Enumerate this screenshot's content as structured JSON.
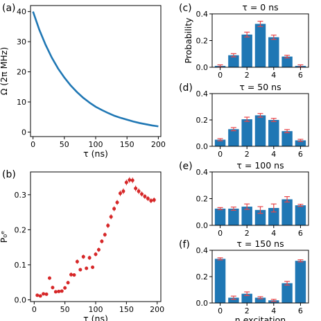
{
  "colors": {
    "line": "#1f77b4",
    "bar": "#1f77b4",
    "marker": "#d62728",
    "errbar": "#e8474a",
    "axis": "#000000"
  },
  "chart_data": [
    {
      "id": "a",
      "panel_label": "(a)",
      "type": "line",
      "xlabel": "τ (ns)",
      "ylabel": "Ω (2π MHz)",
      "xlim": [
        -4,
        204
      ],
      "ylim": [
        -1.5,
        42
      ],
      "xticks": [
        0,
        50,
        100,
        150,
        200
      ],
      "yticks": [
        0,
        10,
        20,
        30,
        40
      ],
      "x": [
        0,
        10,
        20,
        30,
        40,
        50,
        60,
        70,
        80,
        90,
        100,
        110,
        120,
        130,
        140,
        150,
        160,
        170,
        180,
        190,
        200
      ],
      "y": [
        40.0,
        34.0,
        29.0,
        24.7,
        21.1,
        18.1,
        15.5,
        13.3,
        11.4,
        9.8,
        8.4,
        7.3,
        6.3,
        5.4,
        4.7,
        4.1,
        3.5,
        3.0,
        2.6,
        2.2,
        1.9
      ]
    },
    {
      "id": "b",
      "panel_label": "(b)",
      "type": "scatter",
      "xlabel": "τ (ns)",
      "ylabel": "P₀ᵉ",
      "xlim": [
        -6,
        206
      ],
      "ylim": [
        -0.005,
        0.365
      ],
      "xticks": [
        0,
        50,
        100,
        150,
        200
      ],
      "yticks": [
        0.0,
        0.1,
        0.2,
        0.3
      ],
      "x": [
        5,
        10,
        15,
        20,
        25,
        30,
        35,
        40,
        45,
        50,
        55,
        60,
        65,
        70,
        75,
        80,
        85,
        90,
        95,
        100,
        105,
        110,
        115,
        120,
        125,
        130,
        135,
        140,
        145,
        150,
        155,
        160,
        165,
        170,
        175,
        180,
        185,
        190,
        195
      ],
      "y": [
        0.013,
        0.011,
        0.017,
        0.016,
        0.062,
        0.035,
        0.023,
        0.024,
        0.025,
        0.034,
        0.049,
        0.072,
        0.071,
        0.109,
        0.086,
        0.123,
        0.09,
        0.12,
        0.093,
        0.13,
        0.143,
        0.167,
        0.186,
        0.212,
        0.237,
        0.26,
        0.278,
        0.304,
        0.31,
        0.335,
        0.342,
        0.341,
        0.318,
        0.31,
        0.302,
        0.295,
        0.289,
        0.283,
        0.285
      ],
      "err": [
        0.004,
        0.004,
        0.004,
        0.004,
        0.005,
        0.005,
        0.004,
        0.004,
        0.004,
        0.005,
        0.005,
        0.006,
        0.005,
        0.006,
        0.005,
        0.006,
        0.005,
        0.006,
        0.005,
        0.006,
        0.006,
        0.006,
        0.006,
        0.007,
        0.007,
        0.007,
        0.007,
        0.008,
        0.008,
        0.008,
        0.008,
        0.008,
        0.008,
        0.008,
        0.007,
        0.007,
        0.007,
        0.007,
        0.007
      ]
    },
    {
      "id": "c",
      "panel_label": "(c)",
      "type": "bar",
      "title": "τ = 0 ns",
      "ylabel": "Probability",
      "xlabel": "",
      "categories": [
        0,
        1,
        2,
        3,
        4,
        5,
        6
      ],
      "values": [
        0.01,
        0.09,
        0.245,
        0.325,
        0.225,
        0.08,
        0.01
      ],
      "err": [
        0.008,
        0.012,
        0.018,
        0.02,
        0.016,
        0.01,
        0.008
      ],
      "ylim": [
        0,
        0.4
      ],
      "yticks": [
        0.0,
        0.2,
        0.4
      ],
      "xticks": [
        0,
        2,
        4,
        6
      ]
    },
    {
      "id": "d",
      "panel_label": "(d)",
      "type": "bar",
      "title": "τ = 50 ns",
      "ylabel": "",
      "xlabel": "",
      "categories": [
        0,
        1,
        2,
        3,
        4,
        5,
        6
      ],
      "values": [
        0.05,
        0.13,
        0.205,
        0.235,
        0.2,
        0.115,
        0.045
      ],
      "err": [
        0.008,
        0.012,
        0.016,
        0.014,
        0.012,
        0.012,
        0.008
      ],
      "ylim": [
        0,
        0.4
      ],
      "yticks": [
        0.0,
        0.2,
        0.4
      ],
      "xticks": [
        0,
        2,
        4,
        6
      ]
    },
    {
      "id": "e",
      "panel_label": "(e)",
      "type": "bar",
      "title": "τ = 100 ns",
      "ylabel": "",
      "xlabel": "",
      "categories": [
        0,
        1,
        2,
        3,
        4,
        5,
        6
      ],
      "values": [
        0.125,
        0.125,
        0.14,
        0.115,
        0.13,
        0.195,
        0.15
      ],
      "err": [
        0.008,
        0.012,
        0.02,
        0.025,
        0.03,
        0.02,
        0.008
      ],
      "ylim": [
        0,
        0.4
      ],
      "yticks": [
        0.0,
        0.2,
        0.4
      ],
      "xticks": [
        0,
        2,
        4,
        6
      ]
    },
    {
      "id": "f",
      "panel_label": "(f)",
      "type": "bar",
      "title": "τ = 150 ns",
      "ylabel": "",
      "xlabel": "n excitation",
      "categories": [
        0,
        1,
        2,
        3,
        4,
        5,
        6
      ],
      "values": [
        0.335,
        0.04,
        0.07,
        0.04,
        0.02,
        0.15,
        0.32
      ],
      "err": [
        0.008,
        0.012,
        0.014,
        0.008,
        0.008,
        0.014,
        0.008
      ],
      "ylim": [
        0,
        0.4
      ],
      "yticks": [
        0.0,
        0.2,
        0.4
      ],
      "xticks": [
        0,
        2,
        4,
        6
      ]
    }
  ]
}
